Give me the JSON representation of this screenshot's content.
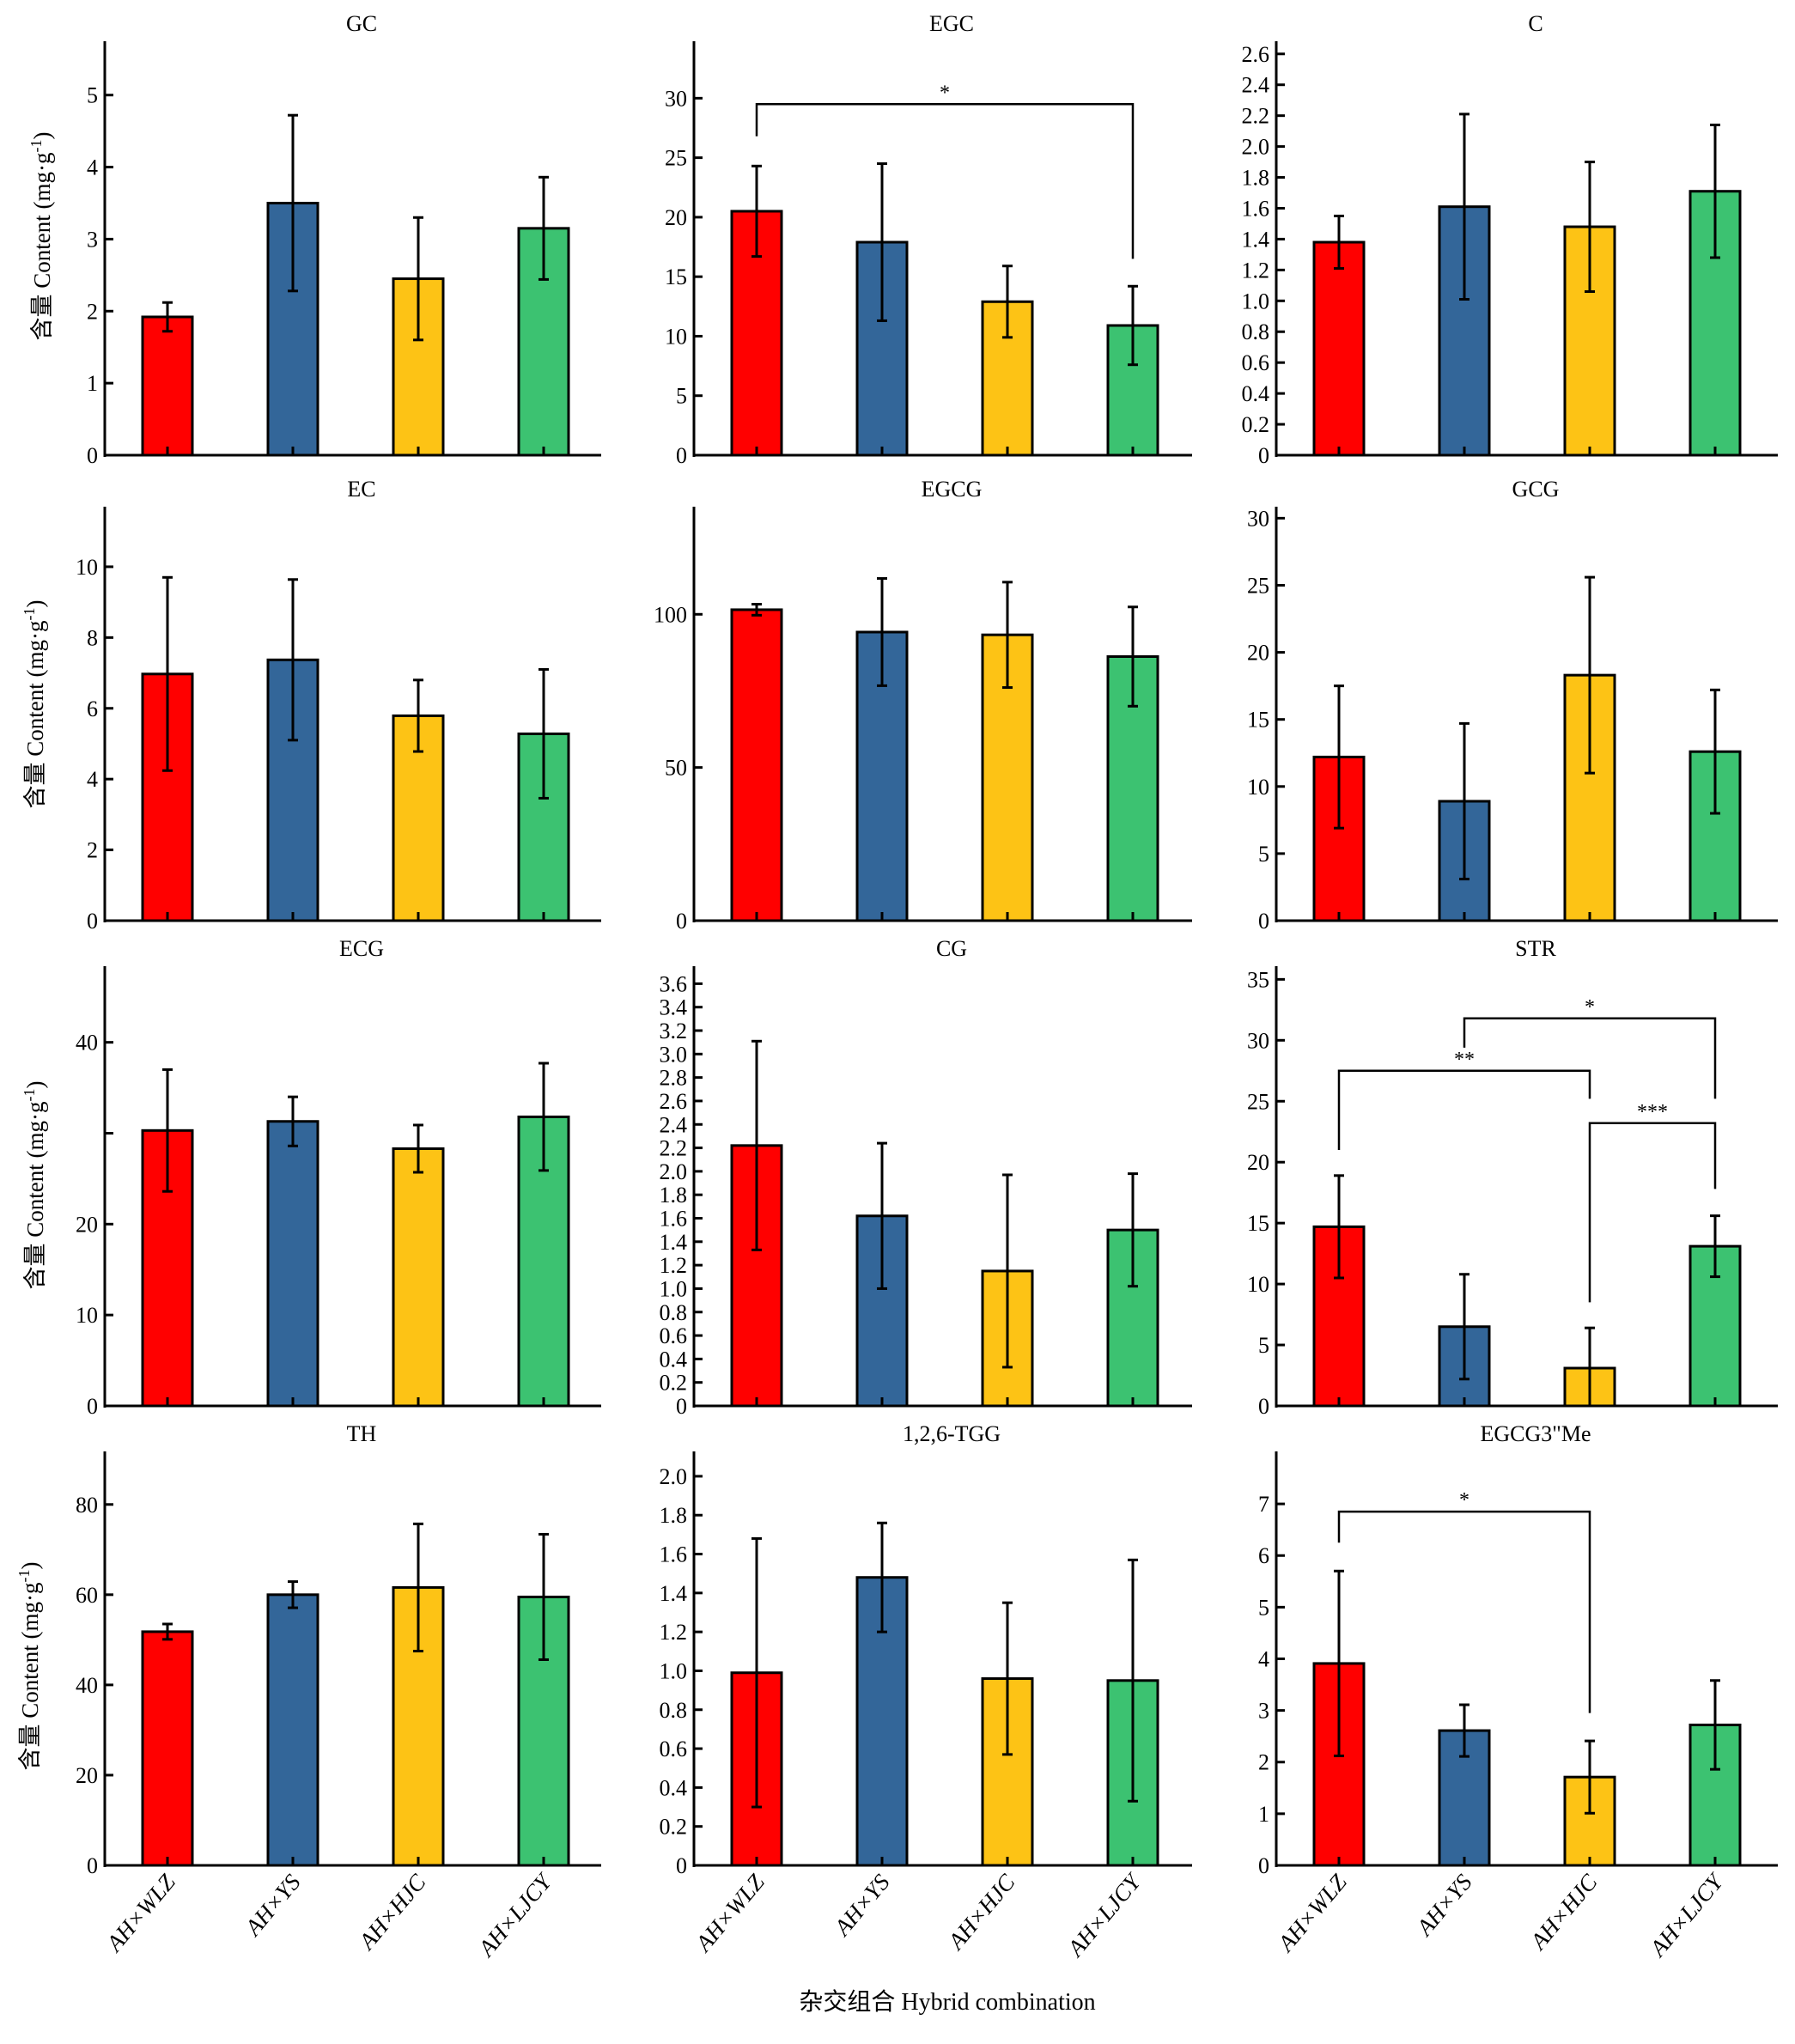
{
  "figure": {
    "x_title": "杂交组合 Hybrid combination",
    "y_label_cn": "含量",
    "y_label_en": "Content (mg·g",
    "y_label_sup": "-1",
    "y_label_close": ")"
  },
  "chart_data": {
    "type": "bar",
    "layout": "4x3 grid of bar charts with standard-deviation error bars",
    "categories": [
      "AH×WLZ",
      "AH×YS",
      "AH×HJC",
      "AH×LJCY"
    ],
    "colors": [
      "#ff0000",
      "#336699",
      "#fdc315",
      "#3cc271"
    ],
    "ylabel": "含量 Content (mg·g-1)",
    "xlabel": "杂交组合 Hybrid combination",
    "panels": [
      {
        "title": "GC",
        "ylim": [
          0,
          5.7
        ],
        "ticks": [
          0,
          1,
          2,
          3,
          4,
          5
        ],
        "tick_labels": [
          "0",
          "1",
          "2",
          "3",
          "4",
          "5"
        ],
        "values": [
          1.92,
          3.5,
          2.45,
          3.15
        ],
        "errors": [
          0.2,
          1.22,
          0.85,
          0.71
        ],
        "sig": []
      },
      {
        "title": "EGC",
        "ylim": [
          0,
          34.5
        ],
        "ticks": [
          0,
          5,
          10,
          15,
          20,
          25,
          30
        ],
        "tick_labels": [
          "0",
          "5",
          "10",
          "15",
          "20",
          "25",
          "30"
        ],
        "values": [
          20.5,
          17.9,
          12.9,
          10.9
        ],
        "errors": [
          3.8,
          6.6,
          3.0,
          3.3
        ],
        "sig": [
          {
            "from": 0,
            "to": 3,
            "level": 29.5,
            "left_end": 26.8,
            "right_end": 16.5,
            "label": "*"
          }
        ]
      },
      {
        "title": "C",
        "ylim": [
          0,
          2.66
        ],
        "ticks": [
          0,
          0.2,
          0.4,
          0.6,
          0.8,
          1.0,
          1.2,
          1.4,
          1.6,
          1.8,
          2.0,
          2.2,
          2.4,
          2.6
        ],
        "tick_labels": [
          "0",
          "0.2",
          "0.4",
          "0.6",
          "0.8",
          "1.0",
          "1.2",
          "1.4",
          "1.6",
          "1.8",
          "2.0",
          "2.2",
          "2.4",
          "2.6"
        ],
        "values": [
          1.38,
          1.61,
          1.48,
          1.71
        ],
        "errors": [
          0.17,
          0.6,
          0.42,
          0.43
        ],
        "sig": []
      },
      {
        "title": "EC",
        "ylim": [
          0,
          11.6
        ],
        "ticks": [
          0,
          2,
          4,
          6,
          8,
          10
        ],
        "tick_labels": [
          "0",
          "2",
          "4",
          "6",
          "8",
          "10"
        ],
        "values": [
          6.97,
          7.37,
          5.79,
          5.28
        ],
        "errors": [
          2.73,
          2.27,
          1.01,
          1.82
        ],
        "sig": []
      },
      {
        "title": "EGCG",
        "ylim": [
          0,
          134
        ],
        "ticks": [
          0,
          50,
          100
        ],
        "tick_labels": [
          "0",
          "50",
          "100"
        ],
        "values": [
          101.5,
          94.2,
          93.3,
          86.2
        ],
        "errors": [
          1.8,
          17.5,
          17.2,
          16.2
        ],
        "sig": []
      },
      {
        "title": "GCG",
        "ylim": [
          0,
          30.6
        ],
        "ticks": [
          0,
          5,
          10,
          15,
          20,
          25,
          30
        ],
        "tick_labels": [
          "0",
          "5",
          "10",
          "15",
          "20",
          "25",
          "30"
        ],
        "values": [
          12.2,
          8.9,
          18.3,
          12.6
        ],
        "errors": [
          5.3,
          5.8,
          7.3,
          4.6
        ],
        "sig": []
      },
      {
        "title": "ECG",
        "ylim": [
          0,
          48
        ],
        "ticks": [
          0,
          10,
          20,
          30,
          40
        ],
        "tick_labels": [
          "0",
          "10",
          "20",
          "",
          "40"
        ],
        "values": [
          30.3,
          31.3,
          28.3,
          31.8
        ],
        "errors": [
          6.7,
          2.7,
          2.6,
          5.9
        ],
        "sig": []
      },
      {
        "title": "CG",
        "ylim": [
          0,
          3.72
        ],
        "ticks": [
          0,
          0.2,
          0.4,
          0.6,
          0.8,
          1.0,
          1.2,
          1.4,
          1.6,
          1.8,
          2.0,
          2.2,
          2.4,
          2.6,
          2.8,
          3.0,
          3.2,
          3.4,
          3.6
        ],
        "tick_labels": [
          "0",
          "0.2",
          "0.4",
          "0.6",
          "0.8",
          "1.0",
          "1.2",
          "1.4",
          "1.6",
          "1.8",
          "2.0",
          "2.2",
          "2.4",
          "2.6",
          "2.8",
          "3.0",
          "3.2",
          "3.4",
          "3.6"
        ],
        "values": [
          2.22,
          1.62,
          1.15,
          1.5
        ],
        "errors": [
          0.89,
          0.62,
          0.82,
          0.48
        ],
        "sig": []
      },
      {
        "title": "STR",
        "ylim": [
          0,
          35.8
        ],
        "ticks": [
          0,
          5,
          10,
          15,
          20,
          25,
          30,
          35
        ],
        "tick_labels": [
          "0",
          "5",
          "10",
          "15",
          "20",
          "25",
          "30",
          "35"
        ],
        "values": [
          14.7,
          6.5,
          3.1,
          13.1
        ],
        "errors": [
          4.2,
          4.3,
          3.3,
          2.5
        ],
        "sig": [
          {
            "from": 1,
            "to": 3,
            "level": 31.8,
            "left_end": 29.4,
            "right_end": 25.2,
            "label": "*"
          },
          {
            "from": 0,
            "to": 2,
            "level": 27.5,
            "left_end": 21.0,
            "right_end": 25.2,
            "label": "**"
          },
          {
            "from": 2,
            "to": 3,
            "level": 23.2,
            "left_end": 8.5,
            "right_end": 17.8,
            "label": "***"
          }
        ]
      },
      {
        "title": "TH",
        "ylim": [
          0,
          91
        ],
        "ticks": [
          0,
          20,
          40,
          60,
          80
        ],
        "tick_labels": [
          "0",
          "20",
          "40",
          "60",
          "80"
        ],
        "values": [
          51.8,
          60.0,
          61.6,
          59.5
        ],
        "errors": [
          1.7,
          2.9,
          14.1,
          13.9
        ],
        "sig": []
      },
      {
        "title": "1,2,6-TGG",
        "ylim": [
          0,
          2.11
        ],
        "ticks": [
          0,
          0.2,
          0.4,
          0.6,
          0.8,
          1.0,
          1.2,
          1.4,
          1.6,
          1.8,
          2.0
        ],
        "tick_labels": [
          "0",
          "0.2",
          "0.4",
          "0.6",
          "0.8",
          "1.0",
          "1.2",
          "1.4",
          "1.6",
          "1.8",
          "2.0"
        ],
        "values": [
          0.99,
          1.48,
          0.96,
          0.95
        ],
        "errors": [
          0.69,
          0.28,
          0.39,
          0.62
        ],
        "sig": []
      },
      {
        "title": "EGCG3\"Me",
        "ylim": [
          0,
          7.95
        ],
        "ticks": [
          0,
          1,
          2,
          3,
          4,
          5,
          6,
          7
        ],
        "tick_labels": [
          "0",
          "1",
          "2",
          "3",
          "4",
          "5",
          "6",
          "7"
        ],
        "values": [
          3.91,
          2.61,
          1.71,
          2.72
        ],
        "errors": [
          1.79,
          0.5,
          0.7,
          0.86
        ],
        "sig": [
          {
            "from": 0,
            "to": 2,
            "level": 6.85,
            "left_end": 6.25,
            "right_end": 2.95,
            "label": "*"
          }
        ]
      }
    ]
  }
}
